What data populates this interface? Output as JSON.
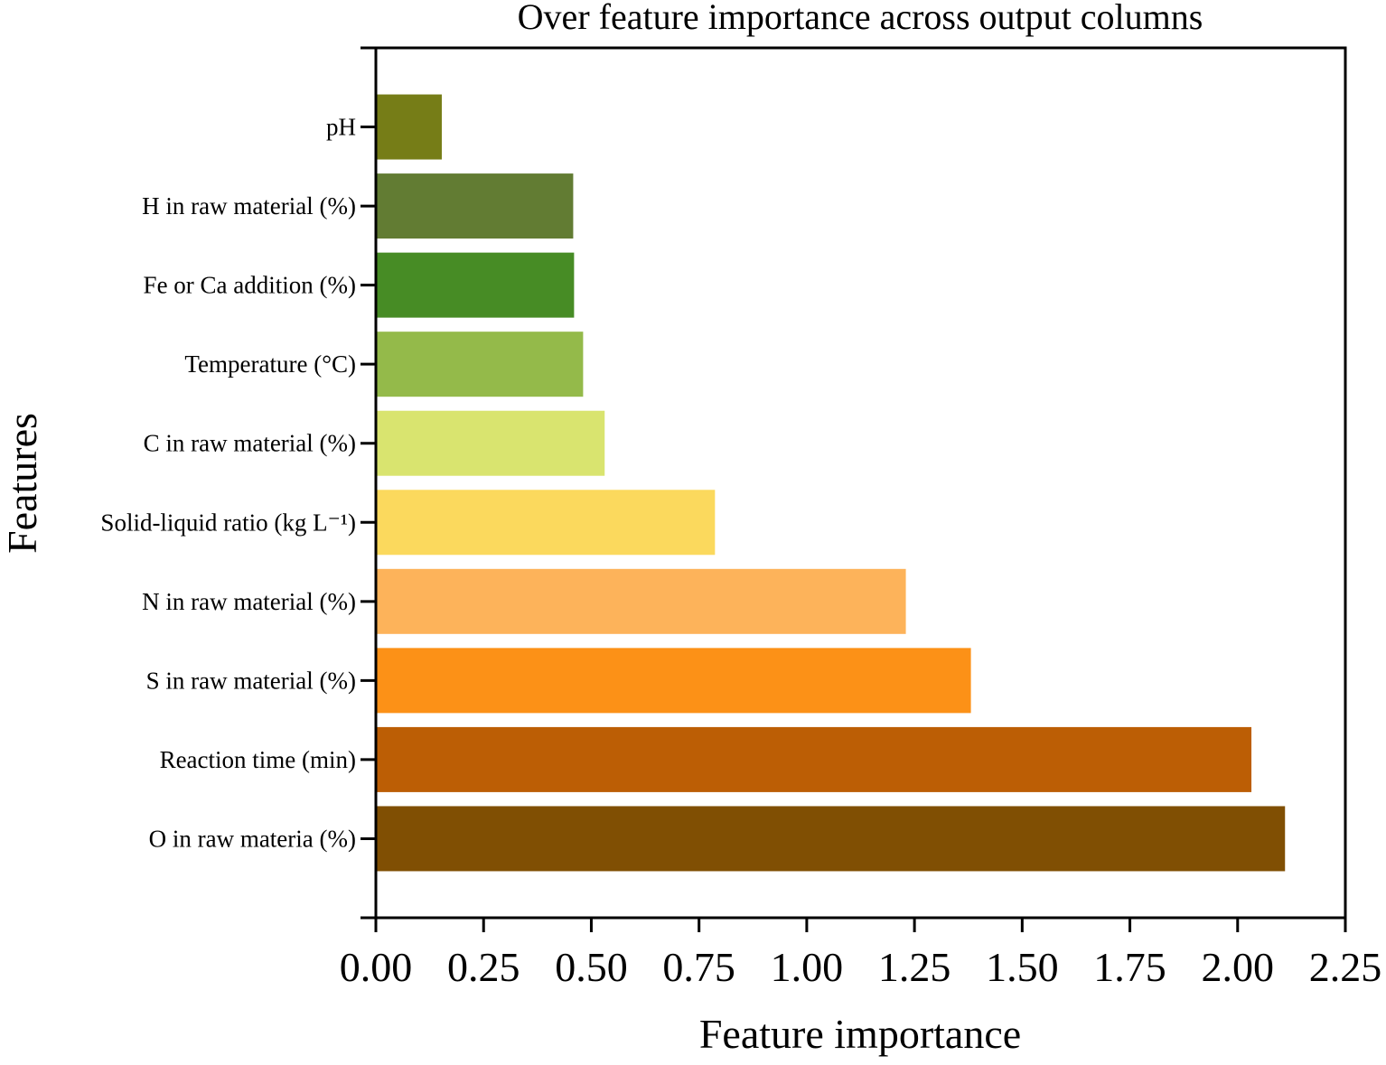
{
  "chart_data": {
    "type": "bar",
    "orientation": "horizontal",
    "title": "Over feature importance across output columns",
    "xlabel": "Feature importance",
    "ylabel": "Features",
    "xlim": [
      0,
      2.25
    ],
    "xticks": [
      0,
      0.25,
      0.5,
      0.75,
      1.0,
      1.25,
      1.5,
      1.75,
      2.0,
      2.25
    ],
    "xtick_labels": [
      "0.00",
      "0.25",
      "0.50",
      "0.75",
      "1.00",
      "1.25",
      "1.50",
      "1.75",
      "2.00",
      "2.25"
    ],
    "grid": false,
    "categories": [
      "pH",
      "H in raw material (%)",
      "Fe or Ca addition (%)",
      "Temperature (°C)",
      "C in raw material (%)",
      "Solid-liquid ratio (kg L⁻¹)",
      "N in raw material (%)",
      "S in raw material (%)",
      "Reaction time (min)",
      "O in raw materia (%)"
    ],
    "values": [
      0.153,
      0.458,
      0.46,
      0.481,
      0.531,
      0.787,
      1.23,
      1.381,
      2.032,
      2.11
    ],
    "colors": [
      "#767d17",
      "#627c33",
      "#478c25",
      "#94ba4a",
      "#d9e46f",
      "#fbd95d",
      "#fdb35a",
      "#fc9117",
      "#bc5e05",
      "#804f03"
    ]
  }
}
